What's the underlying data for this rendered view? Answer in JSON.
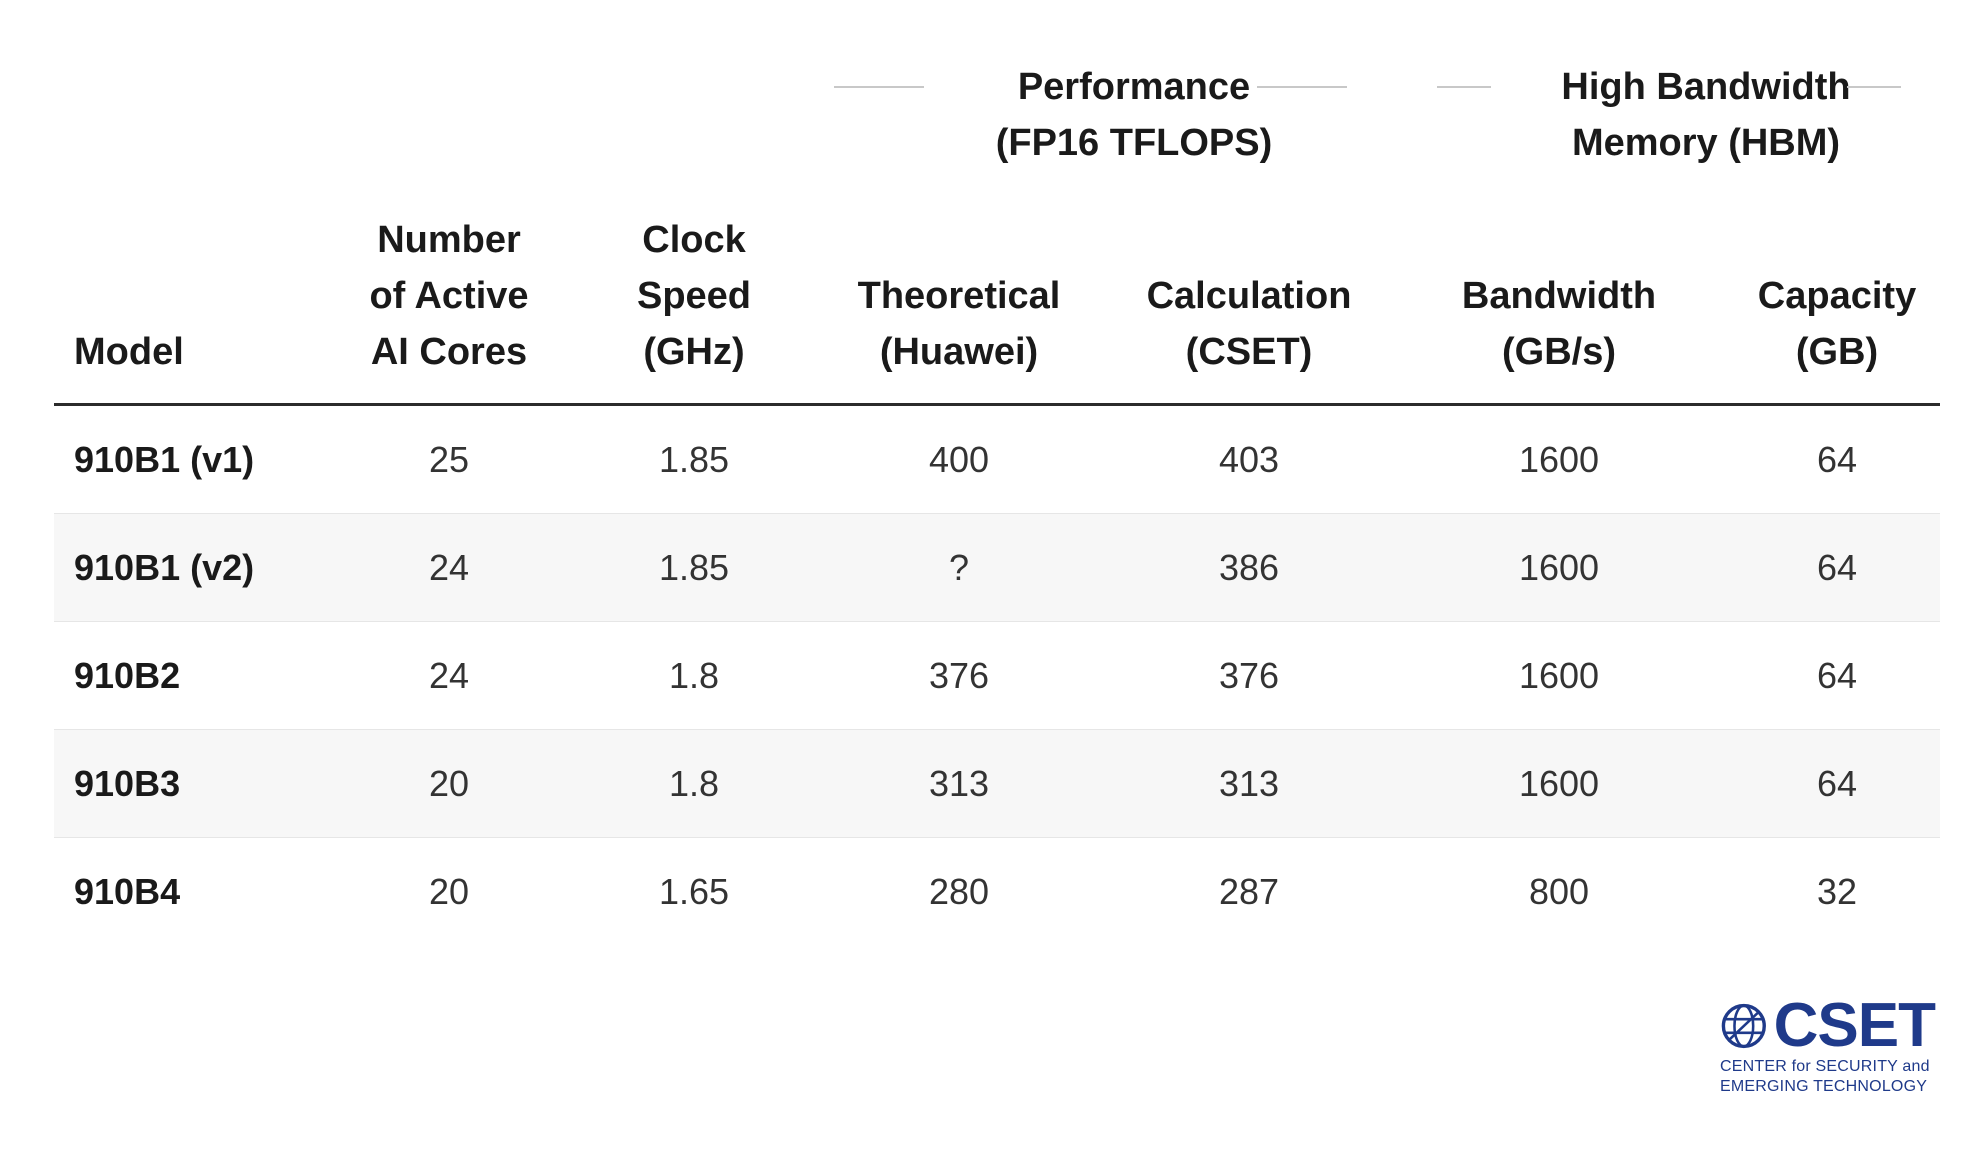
{
  "table": {
    "group_headers": [
      {
        "label": "Performance\n(FP16 TFLOPS)"
      },
      {
        "label": "High Bandwidth\nMemory (HBM)"
      }
    ],
    "column_headers": [
      "Model",
      "Number\nof Active\nAI Cores",
      "Clock\nSpeed\n(GHz)",
      "Theoretical\n(Huawei)",
      "Calculation\n(CSET)",
      "Bandwidth\n(GB/s)",
      "Capacity\n(GB)"
    ],
    "rows": [
      [
        "910B1 (v1)",
        "25",
        "1.85",
        "400",
        "403",
        "1600",
        "64"
      ],
      [
        "910B1 (v2)",
        "24",
        "1.85",
        "?",
        "386",
        "1600",
        "64"
      ],
      [
        "910B2",
        "24",
        "1.8",
        "376",
        "376",
        "1600",
        "64"
      ],
      [
        "910B3",
        "20",
        "1.8",
        "313",
        "313",
        "1600",
        "64"
      ],
      [
        "910B4",
        "20",
        "1.65",
        "280",
        "287",
        "800",
        "32"
      ]
    ]
  },
  "logo": {
    "wordmark": "CSET",
    "line1": "CENTER for SECURITY and",
    "line2": "EMERGING TECHNOLOGY"
  },
  "colors": {
    "brand": "#1f3a8a",
    "row_alt": "#f7f7f7",
    "rule": "#2b2b2b"
  }
}
